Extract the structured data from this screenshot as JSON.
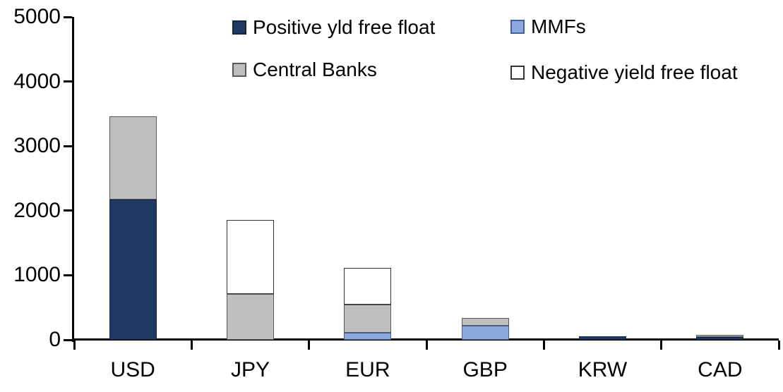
{
  "chart_data": {
    "type": "bar",
    "stacked": true,
    "title": "",
    "xlabel": "",
    "ylabel": "",
    "categories": [
      "USD",
      "JPY",
      "EUR",
      "GBP",
      "KRW",
      "CAD"
    ],
    "series": [
      {
        "name": "Positive yld free float",
        "color": "#1F3864",
        "border_color": "#152743",
        "values": [
          2170,
          0,
          0,
          0,
          50,
          45
        ]
      },
      {
        "name": "MMFs",
        "color": "#8EA9DB",
        "border_color": "#41619C",
        "values": [
          0,
          0,
          110,
          220,
          0,
          0
        ]
      },
      {
        "name": "Central Banks",
        "color": "#BFBFBF",
        "border_color": "#595959",
        "values": [
          1290,
          710,
          435,
          120,
          0,
          30
        ]
      },
      {
        "name": "Negative yield free float",
        "color": "#FFFFFF",
        "border_color": "#333333",
        "values": [
          0,
          1150,
          565,
          0,
          0,
          0
        ]
      }
    ],
    "ylim": [
      0,
      5000
    ],
    "yticks": [
      0,
      1000,
      2000,
      3000,
      4000,
      5000
    ],
    "grid": false,
    "legend_position": "top",
    "axis_color": "#000000",
    "background_color": "#FFFFFF"
  }
}
